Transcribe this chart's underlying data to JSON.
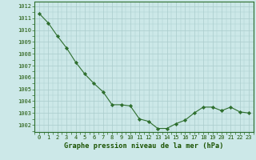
{
  "x": [
    0,
    1,
    2,
    3,
    4,
    5,
    6,
    7,
    8,
    9,
    10,
    11,
    12,
    13,
    14,
    15,
    16,
    17,
    18,
    19,
    20,
    21,
    22,
    23
  ],
  "y": [
    1011.4,
    1010.6,
    1009.5,
    1008.5,
    1007.3,
    1006.3,
    1005.5,
    1004.8,
    1003.7,
    1003.7,
    1003.6,
    1002.5,
    1002.3,
    1001.7,
    1001.7,
    1002.1,
    1002.4,
    1003.0,
    1003.5,
    1003.5,
    1003.2,
    1003.5,
    1003.1,
    1003.0
  ],
  "ylim_min": 1001.4,
  "ylim_max": 1012.4,
  "yticks": [
    1002,
    1003,
    1004,
    1005,
    1006,
    1007,
    1008,
    1009,
    1010,
    1011,
    1012
  ],
  "xticks": [
    0,
    1,
    2,
    3,
    4,
    5,
    6,
    7,
    8,
    9,
    10,
    11,
    12,
    13,
    14,
    15,
    16,
    17,
    18,
    19,
    20,
    21,
    22,
    23
  ],
  "line_color": "#2d6e2d",
  "marker_color": "#2d6e2d",
  "bg_color": "#cce8e8",
  "grid_color": "#aacccc",
  "xlabel": "Graphe pression niveau de la mer (hPa)",
  "xlabel_color": "#1a5200",
  "tick_color": "#1a5200",
  "axes_color": "#2d6e2d",
  "tick_fontsize": 5.0,
  "xlabel_fontsize": 6.2,
  "linewidth": 0.8,
  "markersize": 2.2
}
